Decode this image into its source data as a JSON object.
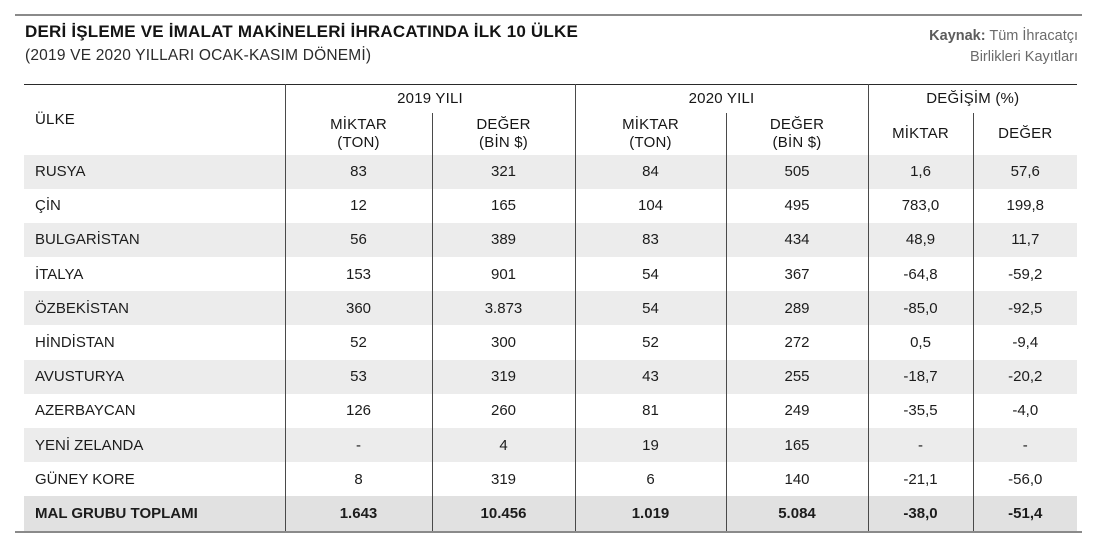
{
  "page": {
    "title": "DERİ İŞLEME VE İMALAT MAKİNELERİ İHRACATINDA İLK 10 ÜLKE",
    "subtitle": "(2019 VE 2020 YILLARI OCAK-KASIM DÖNEMİ)",
    "source": {
      "label": "Kaynak:",
      "line1": "Tüm İhracatçı",
      "line2": "Birlikleri Kayıtları"
    }
  },
  "chart_data": {
    "type": "table",
    "title": "DERİ İŞLEME VE İMALAT MAKİNELERİ İHRACATINDA İLK 10 ÜLKE",
    "subtitle": "(2019 VE 2020 YILLARI OCAK-KASIM DÖNEMİ)",
    "source": "Kaynak: Tüm İhracatçı Birlikleri Kayıtları",
    "row_header_label": "ÜLKE",
    "column_groups": [
      {
        "label": "2019 YILI",
        "columns": [
          {
            "l1": "MİKTAR",
            "l2": "(TON)"
          },
          {
            "l1": "DEĞER",
            "l2": "(BİN $)"
          }
        ]
      },
      {
        "label": "2020 YILI",
        "columns": [
          {
            "l1": "MİKTAR",
            "l2": "(TON)"
          },
          {
            "l1": "DEĞER",
            "l2": "(BİN $)"
          }
        ]
      },
      {
        "label": "DEĞİŞİM (%)",
        "columns": [
          {
            "l1": "MİKTAR",
            "l2": ""
          },
          {
            "l1": "DEĞER",
            "l2": ""
          }
        ]
      }
    ],
    "rows": [
      {
        "country": "RUSYA",
        "values": [
          "83",
          "321",
          "84",
          "505",
          "1,6",
          "57,6"
        ]
      },
      {
        "country": "ÇİN",
        "values": [
          "12",
          "165",
          "104",
          "495",
          "783,0",
          "199,8"
        ]
      },
      {
        "country": "BULGARİSTAN",
        "values": [
          "56",
          "389",
          "83",
          "434",
          "48,9",
          "11,7"
        ]
      },
      {
        "country": "İTALYA",
        "values": [
          "153",
          "901",
          "54",
          "367",
          "-64,8",
          "-59,2"
        ]
      },
      {
        "country": "ÖZBEKİSTAN",
        "values": [
          "360",
          "3.873",
          "54",
          "289",
          "-85,0",
          "-92,5"
        ]
      },
      {
        "country": "HİNDİSTAN",
        "values": [
          "52",
          "300",
          "52",
          "272",
          "0,5",
          "-9,4"
        ]
      },
      {
        "country": "AVUSTURYA",
        "values": [
          "53",
          "319",
          "43",
          "255",
          "-18,7",
          "-20,2"
        ]
      },
      {
        "country": "AZERBAYCAN",
        "values": [
          "126",
          "260",
          "81",
          "249",
          "-35,5",
          "-4,0"
        ]
      },
      {
        "country": "YENİ ZELANDA",
        "values": [
          "-",
          "4",
          "19",
          "165",
          "-",
          "-"
        ]
      },
      {
        "country": "GÜNEY KORE",
        "values": [
          "8",
          "319",
          "6",
          "140",
          "-21,1",
          "-56,0"
        ]
      }
    ],
    "total_row": {
      "country": "MAL GRUBU TOPLAMI",
      "values": [
        "1.643",
        "10.456",
        "1.019",
        "5.084",
        "-38,0",
        "-51,4"
      ]
    },
    "colors": {
      "row_shade": "#ececec",
      "total_row_shade": "#e1e1e1",
      "divider_rule": "#8a8a8a",
      "table_border": "#4a4a4a",
      "text": "#1c1c1c"
    }
  }
}
